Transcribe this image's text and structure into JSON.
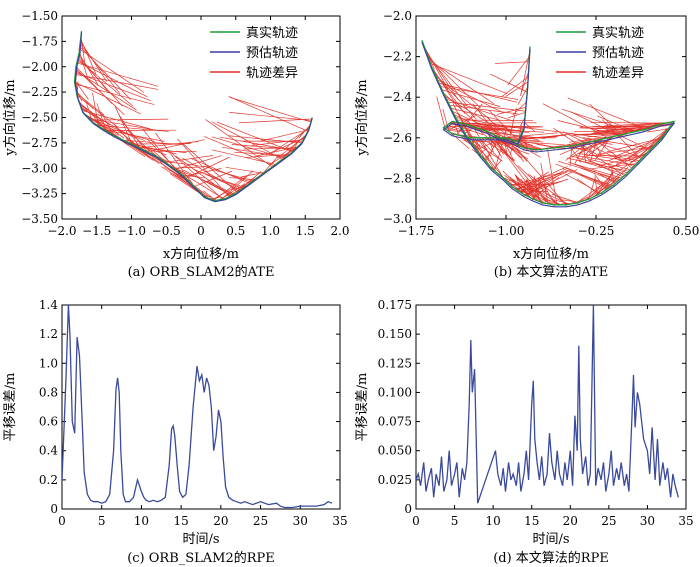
{
  "colors": {
    "true": "#1a9a3a",
    "est": "#3a3ea0",
    "err": "#e2342c",
    "rpe": "#3a4a9c"
  },
  "chart_data": [
    {
      "id": "a",
      "type": "line",
      "caption": "(a) ORB_SLAM2的ATE",
      "xlabel": "x方向位移/m",
      "ylabel": "y方向位移/m",
      "xlim": [
        -2.0,
        2.0
      ],
      "ylim": [
        -3.5,
        -1.5
      ],
      "xticks": [
        "−2.0",
        "−1.5",
        "−1.0",
        "−0.5",
        "0",
        "0.5",
        "1.0",
        "1.5",
        "2.0"
      ],
      "yticks": [
        "−1.50",
        "−1.75",
        "−2.00",
        "−2.25",
        "−2.50",
        "−2.75",
        "−3.00",
        "−3.25",
        "−3.50"
      ],
      "legend": [
        "真实轨迹",
        "预估轨迹",
        "轨迹差异"
      ],
      "legend_pos": "top-right",
      "series": [
        {
          "name": "真实轨迹",
          "x": [
            -1.72,
            -1.75,
            -1.8,
            -1.82,
            -1.78,
            -1.7,
            -1.55,
            -1.4,
            -1.25,
            -1.1,
            -0.95,
            -0.8,
            -0.65,
            -0.5,
            -0.3,
            -0.1,
            0.05,
            0.2,
            0.35,
            0.5,
            0.7,
            0.9,
            1.1,
            1.3,
            1.45,
            1.55,
            1.6
          ],
          "y": [
            -1.65,
            -1.85,
            -2.0,
            -2.15,
            -2.3,
            -2.45,
            -2.55,
            -2.62,
            -2.68,
            -2.73,
            -2.78,
            -2.83,
            -2.88,
            -2.95,
            -3.05,
            -3.18,
            -3.28,
            -3.32,
            -3.3,
            -3.25,
            -3.15,
            -3.05,
            -2.95,
            -2.85,
            -2.75,
            -2.62,
            -2.5
          ]
        },
        {
          "name": "预估轨迹",
          "x": [
            -1.72,
            -1.74,
            -1.79,
            -1.81,
            -1.77,
            -1.69,
            -1.55,
            -1.4,
            -1.25,
            -1.1,
            -0.95,
            -0.8,
            -0.65,
            -0.5,
            -0.3,
            -0.1,
            0.05,
            0.2,
            0.35,
            0.5,
            0.7,
            0.9,
            1.1,
            1.3,
            1.45,
            1.55,
            1.6
          ],
          "y": [
            -1.66,
            -1.86,
            -2.01,
            -2.16,
            -2.31,
            -2.46,
            -2.56,
            -2.63,
            -2.69,
            -2.74,
            -2.79,
            -2.84,
            -2.89,
            -2.96,
            -3.06,
            -3.19,
            -3.29,
            -3.33,
            -3.31,
            -3.26,
            -3.16,
            -3.06,
            -2.96,
            -2.86,
            -2.76,
            -2.63,
            -2.51
          ]
        }
      ]
    },
    {
      "id": "b",
      "type": "line",
      "caption": "(b) 本文算法的ATE",
      "xlabel": "x方向位移/m",
      "ylabel": "y方向位移/m",
      "xlim": [
        -1.75,
        0.5
      ],
      "ylim": [
        -3.0,
        -2.0
      ],
      "xticks": [
        "−1.75",
        "−1.00",
        "−0.25",
        "0.50"
      ],
      "yticks": [
        "−2.0",
        "−2.2",
        "−2.4",
        "−2.6",
        "−2.8",
        "−3.0"
      ],
      "legend": [
        "真实轨迹",
        "预估轨迹",
        "轨迹差异"
      ],
      "legend_pos": "top-right",
      "series": [
        {
          "name": "真实轨迹",
          "x": [
            -1.7,
            -1.62,
            -1.52,
            -1.42,
            -1.32,
            -1.22,
            -1.12,
            -1.02,
            -0.95,
            -0.9,
            -0.85,
            -0.78,
            -0.7,
            -0.6,
            -0.5,
            -0.4,
            -0.3,
            -0.2,
            -0.1,
            0.0,
            0.1,
            0.2,
            0.3,
            0.36,
            0.4,
            0.3,
            0.15,
            0.0,
            -0.15,
            -0.3,
            -0.45,
            -0.6,
            -0.75,
            -0.85,
            -0.95,
            -1.05,
            -1.15,
            -1.25,
            -1.35,
            -1.45,
            -1.52,
            -1.45,
            -1.3,
            -1.15,
            -1.0,
            -0.9,
            -0.85,
            -0.82,
            -0.8
          ],
          "y": [
            -2.12,
            -2.25,
            -2.38,
            -2.5,
            -2.6,
            -2.68,
            -2.75,
            -2.8,
            -2.84,
            -2.86,
            -2.88,
            -2.9,
            -2.92,
            -2.93,
            -2.93,
            -2.92,
            -2.9,
            -2.87,
            -2.83,
            -2.78,
            -2.72,
            -2.66,
            -2.6,
            -2.55,
            -2.52,
            -2.53,
            -2.56,
            -2.58,
            -2.6,
            -2.62,
            -2.64,
            -2.65,
            -2.66,
            -2.65,
            -2.62,
            -2.6,
            -2.57,
            -2.55,
            -2.53,
            -2.52,
            -2.55,
            -2.58,
            -2.6,
            -2.6,
            -2.6,
            -2.62,
            -2.55,
            -2.35,
            -2.15
          ]
        },
        {
          "name": "预估轨迹",
          "x": [
            -1.7,
            -1.62,
            -1.52,
            -1.42,
            -1.32,
            -1.22,
            -1.12,
            -1.02,
            -0.95,
            -0.9,
            -0.85,
            -0.78,
            -0.7,
            -0.6,
            -0.5,
            -0.4,
            -0.3,
            -0.2,
            -0.1,
            0.0,
            0.1,
            0.2,
            0.3,
            0.36,
            0.4,
            0.3,
            0.15,
            0.0,
            -0.15,
            -0.3,
            -0.45,
            -0.6,
            -0.75,
            -0.85,
            -0.95,
            -1.05,
            -1.15,
            -1.25,
            -1.35,
            -1.45,
            -1.52,
            -1.45,
            -1.3,
            -1.15,
            -1.0,
            -0.9,
            -0.85,
            -0.82,
            -0.8
          ],
          "y": [
            -2.13,
            -2.26,
            -2.39,
            -2.51,
            -2.61,
            -2.69,
            -2.76,
            -2.81,
            -2.85,
            -2.87,
            -2.89,
            -2.91,
            -2.93,
            -2.94,
            -2.94,
            -2.93,
            -2.91,
            -2.88,
            -2.84,
            -2.79,
            -2.73,
            -2.67,
            -2.61,
            -2.56,
            -2.53,
            -2.54,
            -2.57,
            -2.59,
            -2.61,
            -2.63,
            -2.65,
            -2.66,
            -2.67,
            -2.66,
            -2.63,
            -2.61,
            -2.58,
            -2.56,
            -2.54,
            -2.53,
            -2.56,
            -2.59,
            -2.61,
            -2.61,
            -2.61,
            -2.63,
            -2.56,
            -2.36,
            -2.16
          ]
        }
      ]
    },
    {
      "id": "c",
      "type": "line",
      "caption": "(c) ORB_SLAM2的RPE",
      "xlabel": "时间/s",
      "ylabel": "平移误差/m",
      "xlim": [
        0,
        35
      ],
      "ylim": [
        0,
        1.4
      ],
      "xticks": [
        "0",
        "5",
        "10",
        "15",
        "20",
        "25",
        "30",
        "35"
      ],
      "yticks": [
        "0",
        "0.2",
        "0.4",
        "0.6",
        "0.8",
        "1.0",
        "1.2",
        "1.4"
      ],
      "series": [
        {
          "name": "RPE",
          "x": [
            0,
            0.5,
            0.8,
            1.0,
            1.3,
            1.6,
            1.9,
            2.2,
            2.5,
            2.8,
            3.2,
            3.6,
            4.0,
            4.5,
            5,
            5.5,
            6.0,
            6.5,
            6.8,
            7.0,
            7.2,
            7.4,
            7.7,
            8.0,
            8.5,
            9.0,
            9.5,
            10.0,
            10.3,
            10.6,
            11.0,
            11.5,
            12,
            12.5,
            13.0,
            13.5,
            13.8,
            14.0,
            14.2,
            14.5,
            14.8,
            15.2,
            15.6,
            16.0,
            16.5,
            17.0,
            17.3,
            17.6,
            17.9,
            18.2,
            18.5,
            18.8,
            19.1,
            19.4,
            19.7,
            20.0,
            20.3,
            20.6,
            21.0,
            21.5,
            22,
            22.5,
            23,
            23.5,
            24,
            25,
            26,
            27,
            27.5,
            28,
            29,
            30,
            31,
            32,
            33,
            33.5,
            34
          ],
          "y": [
            0.2,
            0.9,
            1.4,
            1.2,
            0.6,
            0.52,
            1.18,
            1.05,
            0.65,
            0.25,
            0.1,
            0.06,
            0.05,
            0.05,
            0.04,
            0.05,
            0.1,
            0.4,
            0.82,
            0.9,
            0.8,
            0.4,
            0.1,
            0.05,
            0.05,
            0.08,
            0.2,
            0.12,
            0.08,
            0.06,
            0.05,
            0.06,
            0.05,
            0.06,
            0.08,
            0.3,
            0.55,
            0.57,
            0.5,
            0.3,
            0.12,
            0.08,
            0.1,
            0.3,
            0.7,
            0.98,
            0.88,
            0.92,
            0.8,
            0.9,
            0.85,
            0.7,
            0.4,
            0.5,
            0.68,
            0.6,
            0.35,
            0.15,
            0.08,
            0.06,
            0.05,
            0.04,
            0.05,
            0.04,
            0.03,
            0.05,
            0.03,
            0.04,
            0.02,
            0.01,
            0.01,
            0.02,
            0.02,
            0.02,
            0.03,
            0.05,
            0.04
          ]
        }
      ]
    },
    {
      "id": "d",
      "type": "line",
      "caption": "(d) 本文算法的RPE",
      "xlabel": "时间/s",
      "ylabel": "平移误差/m",
      "xlim": [
        0,
        35
      ],
      "ylim": [
        0,
        0.175
      ],
      "xticks": [
        "0",
        "5",
        "10",
        "15",
        "20",
        "25",
        "30",
        "35"
      ],
      "yticks": [
        "0",
        "0.025",
        "0.050",
        "0.075",
        "0.100",
        "0.125",
        "0.150",
        "0.175"
      ],
      "series": [
        {
          "name": "RPE",
          "x": [
            0,
            0.3,
            0.6,
            1,
            1.3,
            1.6,
            2,
            2.3,
            2.6,
            3,
            3.3,
            3.6,
            4,
            4.3,
            4.6,
            5,
            5.3,
            5.6,
            6,
            6.3,
            6.6,
            6.9,
            7.1,
            7.3,
            7.6,
            8,
            10.3,
            10.6,
            11,
            11.3,
            11.6,
            12,
            12.3,
            12.6,
            13,
            13.3,
            13.6,
            14,
            14.3,
            14.6,
            15,
            15.2,
            15.4,
            15.7,
            16,
            16.3,
            16.6,
            17,
            17.3,
            17.6,
            18,
            18.3,
            18.6,
            19,
            19.3,
            19.6,
            20,
            20.3,
            20.6,
            20.9,
            21.1,
            21.3,
            21.6,
            22,
            22.3,
            22.6,
            23,
            23.3,
            23.6,
            24,
            24.3,
            24.6,
            25,
            25.3,
            25.6,
            26,
            26.3,
            26.6,
            27,
            27.3,
            27.6,
            28,
            28.2,
            28.4,
            28.7,
            29,
            29.5,
            30,
            30.3,
            30.6,
            31,
            31.3,
            31.6,
            32,
            32.3,
            32.6,
            33,
            33.3,
            33.6,
            34
          ],
          "y": [
            0.025,
            0.03,
            0.02,
            0.04,
            0.015,
            0.025,
            0.035,
            0.01,
            0.03,
            0.02,
            0.045,
            0.015,
            0.025,
            0.05,
            0.02,
            0.03,
            0.04,
            0.01,
            0.035,
            0.025,
            0.04,
            0.09,
            0.145,
            0.1,
            0.12,
            0.005,
            0.05,
            0.03,
            0.02,
            0.035,
            0.015,
            0.04,
            0.025,
            0.03,
            0.02,
            0.04,
            0.015,
            0.03,
            0.05,
            0.025,
            0.09,
            0.11,
            0.06,
            0.04,
            0.025,
            0.045,
            0.02,
            0.03,
            0.065,
            0.04,
            0.025,
            0.05,
            0.03,
            0.02,
            0.04,
            0.025,
            0.05,
            0.02,
            0.08,
            0.05,
            0.14,
            0.06,
            0.03,
            0.045,
            0.02,
            0.03,
            0.175,
            0.02,
            0.035,
            0.025,
            0.04,
            0.015,
            0.03,
            0.05,
            0.02,
            0.035,
            0.025,
            0.04,
            0.02,
            0.03,
            0.015,
            0.08,
            0.115,
            0.07,
            0.1,
            0.09,
            0.06,
            0.05,
            0.03,
            0.07,
            0.025,
            0.06,
            0.02,
            0.04,
            0.025,
            0.035,
            0.01,
            0.03,
            0.02,
            0.01
          ]
        }
      ]
    }
  ]
}
